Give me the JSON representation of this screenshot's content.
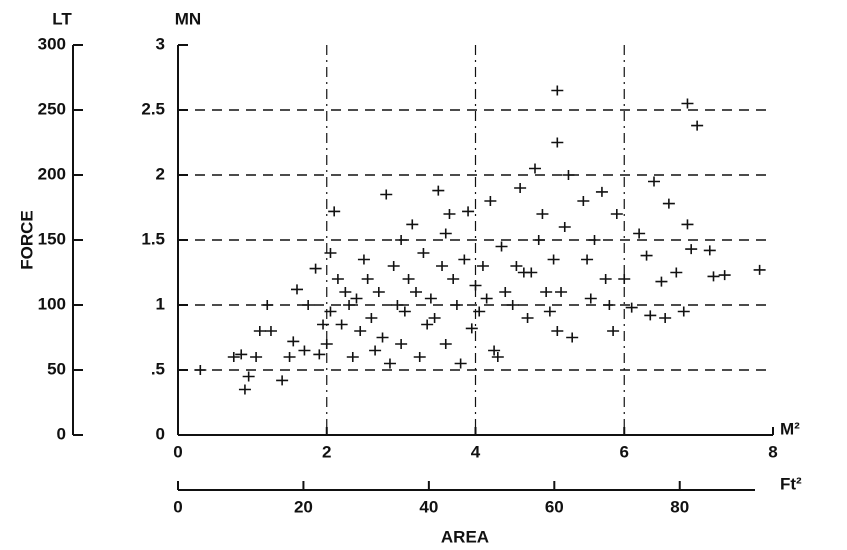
{
  "chart_data": {
    "type": "scatter",
    "y_label": "FORCE",
    "x_label": "AREA",
    "y_unit": "MN",
    "y2_unit": "LT",
    "x_unit": "M²",
    "x2_unit": "Ft²",
    "xlim": [
      0,
      8
    ],
    "xticks": [
      0,
      2,
      4,
      6,
      8
    ],
    "x2lim": [
      0,
      92
    ],
    "x2ticks": [
      0,
      20,
      40,
      60,
      80
    ],
    "ylim": [
      0,
      3
    ],
    "yticks": [
      0,
      {
        "value": 0.5,
        "label": ".5"
      },
      1,
      1.5,
      2,
      2.5,
      3
    ],
    "y2lim": [
      0,
      300
    ],
    "y2ticks": [
      0,
      50,
      100,
      150,
      200,
      250,
      300
    ],
    "grid": true,
    "color": "#111111",
    "x": [
      0.3,
      0.9,
      0.95,
      0.75,
      0.85,
      1.05,
      1.1,
      1.25,
      1.2,
      1.4,
      1.5,
      1.6,
      1.7,
      1.75,
      1.85,
      1.9,
      1.95,
      2.0,
      2.05,
      2.1,
      2.15,
      2.2,
      2.3,
      2.35,
      2.4,
      2.5,
      2.55,
      2.6,
      2.7,
      2.75,
      2.8,
      2.85,
      2.9,
      3.0,
      3.05,
      3.1,
      3.2,
      3.25,
      3.3,
      3.35,
      3.4,
      3.5,
      3.55,
      3.6,
      3.65,
      3.7,
      3.75,
      3.8,
      3.85,
      3.9,
      4.0,
      4.05,
      4.1,
      4.2,
      4.25,
      4.3,
      4.35,
      4.4,
      4.5,
      4.6,
      4.65,
      4.7,
      4.8,
      4.85,
      4.9,
      4.95,
      5.0,
      5.05,
      5.1,
      5.2,
      5.25,
      5.3,
      5.1,
      5.1,
      5.45,
      5.5,
      5.55,
      5.6,
      5.7,
      5.75,
      5.8,
      5.85,
      5.9,
      6.0,
      6.1,
      6.2,
      6.3,
      6.35,
      6.4,
      6.5,
      6.55,
      6.6,
      6.7,
      6.8,
      6.85,
      6.9,
      6.85,
      6.98,
      7.15,
      7.2,
      7.35,
      7.82,
      3.15,
      3.95,
      4.75,
      2.65,
      1.55,
      2.25,
      3.45,
      2.95,
      4.15,
      4.55,
      5.15,
      2.05,
      2.45,
      3.6,
      3.0
    ],
    "values": [
      0.5,
      0.35,
      0.45,
      0.6,
      0.62,
      0.6,
      0.8,
      0.8,
      1.0,
      0.42,
      0.6,
      1.12,
      0.65,
      1.0,
      1.28,
      0.62,
      0.85,
      0.7,
      1.4,
      1.72,
      1.2,
      0.85,
      1.0,
      0.6,
      1.05,
      1.35,
      1.2,
      0.9,
      1.1,
      0.75,
      1.85,
      0.55,
      1.3,
      1.5,
      0.95,
      1.2,
      1.1,
      0.6,
      1.4,
      0.85,
      1.05,
      1.88,
      1.3,
      0.7,
      1.7,
      1.2,
      1.0,
      0.55,
      1.35,
      1.72,
      1.15,
      0.95,
      1.3,
      1.8,
      0.65,
      0.6,
      1.45,
      1.1,
      1.0,
      1.9,
      1.25,
      0.9,
      2.05,
      1.5,
      1.7,
      1.1,
      0.95,
      1.35,
      0.8,
      1.6,
      2.0,
      0.75,
      2.65,
      2.25,
      1.8,
      1.35,
      1.05,
      1.5,
      1.87,
      1.2,
      1.0,
      0.8,
      1.7,
      1.2,
      0.98,
      1.55,
      1.38,
      0.92,
      1.95,
      1.18,
      0.9,
      1.78,
      1.25,
      0.95,
      1.62,
      1.43,
      2.55,
      2.38,
      1.42,
      1.22,
      1.23,
      1.27,
      1.62,
      0.82,
      1.25,
      0.65,
      0.72,
      1.1,
      0.9,
      1.0,
      1.05,
      1.3,
      1.1,
      0.95,
      0.8,
      1.55,
      0.7
    ]
  }
}
